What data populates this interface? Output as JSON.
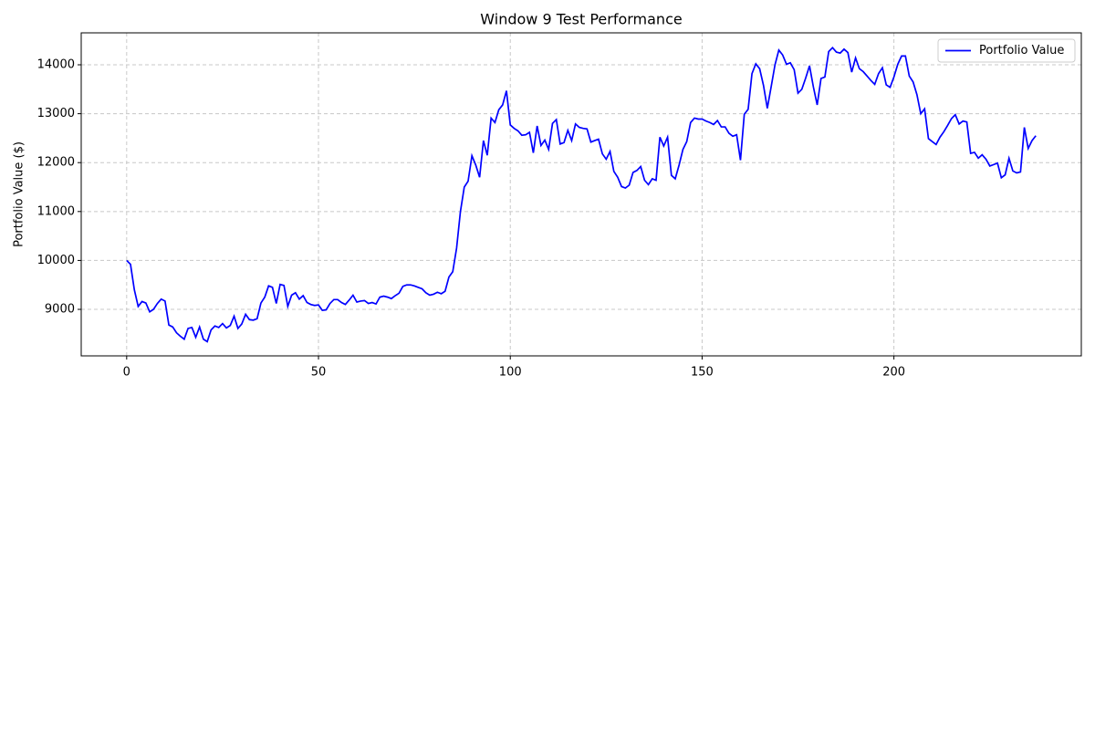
{
  "chart_data": {
    "type": "line",
    "title": "Window 9 Test Performance",
    "y_label": "Portfolio Value ($)",
    "grid": true,
    "legend": "upper right",
    "xlim": [
      -11.85,
      248.85
    ],
    "ylim": [
      8049,
      14653
    ],
    "xticks": [
      0,
      50,
      100,
      150,
      200
    ],
    "yticks": [
      9000,
      10000,
      11000,
      12000,
      13000,
      14000
    ],
    "x": [
      0,
      1,
      2,
      3,
      4,
      5,
      6,
      7,
      8,
      9,
      10,
      11,
      12,
      13,
      14,
      15,
      16,
      17,
      18,
      19,
      20,
      21,
      22,
      23,
      24,
      25,
      26,
      27,
      28,
      29,
      30,
      31,
      32,
      33,
      34,
      35,
      36,
      37,
      38,
      39,
      40,
      41,
      42,
      43,
      44,
      45,
      46,
      47,
      48,
      49,
      50,
      51,
      52,
      53,
      54,
      55,
      56,
      57,
      58,
      59,
      60,
      61,
      62,
      63,
      64,
      65,
      66,
      67,
      68,
      69,
      70,
      71,
      72,
      73,
      74,
      75,
      76,
      77,
      78,
      79,
      80,
      81,
      82,
      83,
      84,
      85,
      86,
      87,
      88,
      89,
      90,
      91,
      92,
      93,
      94,
      95,
      96,
      97,
      98,
      99,
      100,
      101,
      102,
      103,
      104,
      105,
      106,
      107,
      108,
      109,
      110,
      111,
      112,
      113,
      114,
      115,
      116,
      117,
      118,
      119,
      120,
      121,
      122,
      123,
      124,
      125,
      126,
      127,
      128,
      129,
      130,
      131,
      132,
      133,
      134,
      135,
      136,
      137,
      138,
      139,
      140,
      141,
      142,
      143,
      144,
      145,
      146,
      147,
      148,
      149,
      150,
      151,
      152,
      153,
      154,
      155,
      156,
      157,
      158,
      159,
      160,
      161,
      162,
      163,
      164,
      165,
      166,
      167,
      168,
      169,
      170,
      171,
      172,
      173,
      174,
      175,
      176,
      177,
      178,
      179,
      180,
      181,
      182,
      183,
      184,
      185,
      186,
      187,
      188,
      189,
      190,
      191,
      192,
      193,
      194,
      195,
      196,
      197,
      198,
      199,
      200,
      201,
      202,
      203,
      204,
      205,
      206,
      207,
      208,
      209,
      210,
      211,
      212,
      213,
      214,
      215,
      216,
      217,
      218,
      219,
      220,
      221,
      222,
      223,
      224,
      225,
      226,
      227,
      228,
      229,
      230,
      231,
      232,
      233,
      234,
      235,
      236,
      237
    ],
    "series": [
      {
        "name": "Portfolio Value",
        "color": "#0000ff",
        "values": [
          10000,
          9920,
          9400,
          9060,
          9160,
          9130,
          8950,
          9000,
          9120,
          9210,
          9170,
          8680,
          8640,
          8520,
          8450,
          8390,
          8610,
          8630,
          8430,
          8640,
          8390,
          8340,
          8580,
          8660,
          8630,
          8710,
          8620,
          8670,
          8860,
          8610,
          8700,
          8900,
          8790,
          8780,
          8810,
          9130,
          9250,
          9480,
          9450,
          9120,
          9510,
          9490,
          9060,
          9290,
          9340,
          9210,
          9280,
          9140,
          9100,
          9080,
          9090,
          8980,
          8990,
          9120,
          9200,
          9200,
          9140,
          9100,
          9190,
          9290,
          9150,
          9170,
          9180,
          9120,
          9140,
          9110,
          9250,
          9270,
          9250,
          9220,
          9280,
          9330,
          9470,
          9500,
          9500,
          9480,
          9450,
          9420,
          9340,
          9290,
          9310,
          9350,
          9320,
          9370,
          9660,
          9770,
          10250,
          11000,
          11500,
          11620,
          12140,
          11950,
          11700,
          12450,
          12150,
          12910,
          12820,
          13080,
          13180,
          13470,
          12770,
          12700,
          12650,
          12560,
          12570,
          12620,
          12200,
          12750,
          12350,
          12460,
          12270,
          12800,
          12880,
          12380,
          12410,
          12660,
          12450,
          12790,
          12720,
          12700,
          12690,
          12420,
          12450,
          12480,
          12180,
          12070,
          12230,
          11820,
          11700,
          11510,
          11480,
          11540,
          11800,
          11840,
          11920,
          11640,
          11550,
          11670,
          11640,
          12520,
          12340,
          12520,
          11740,
          11670,
          11950,
          12270,
          12430,
          12820,
          12910,
          12890,
          12890,
          12850,
          12820,
          12780,
          12860,
          12730,
          12730,
          12600,
          12540,
          12570,
          12050,
          12990,
          13090,
          13820,
          14020,
          13920,
          13580,
          13110,
          13550,
          14000,
          14300,
          14200,
          14010,
          14040,
          13900,
          13420,
          13500,
          13730,
          13980,
          13550,
          13180,
          13720,
          13750,
          14270,
          14350,
          14260,
          14240,
          14320,
          14250,
          13850,
          14140,
          13920,
          13860,
          13770,
          13680,
          13600,
          13820,
          13940,
          13590,
          13540,
          13750,
          14010,
          14180,
          14180,
          13770,
          13650,
          13390,
          13000,
          13100,
          12490,
          12430,
          12370,
          12520,
          12630,
          12760,
          12900,
          12980,
          12790,
          12850,
          12830,
          12190,
          12210,
          12090,
          12160,
          12070,
          11930,
          11960,
          11990,
          11690,
          11750,
          12090,
          11830,
          11790,
          11810,
          12720,
          12290,
          12450,
          12550
        ]
      }
    ]
  }
}
